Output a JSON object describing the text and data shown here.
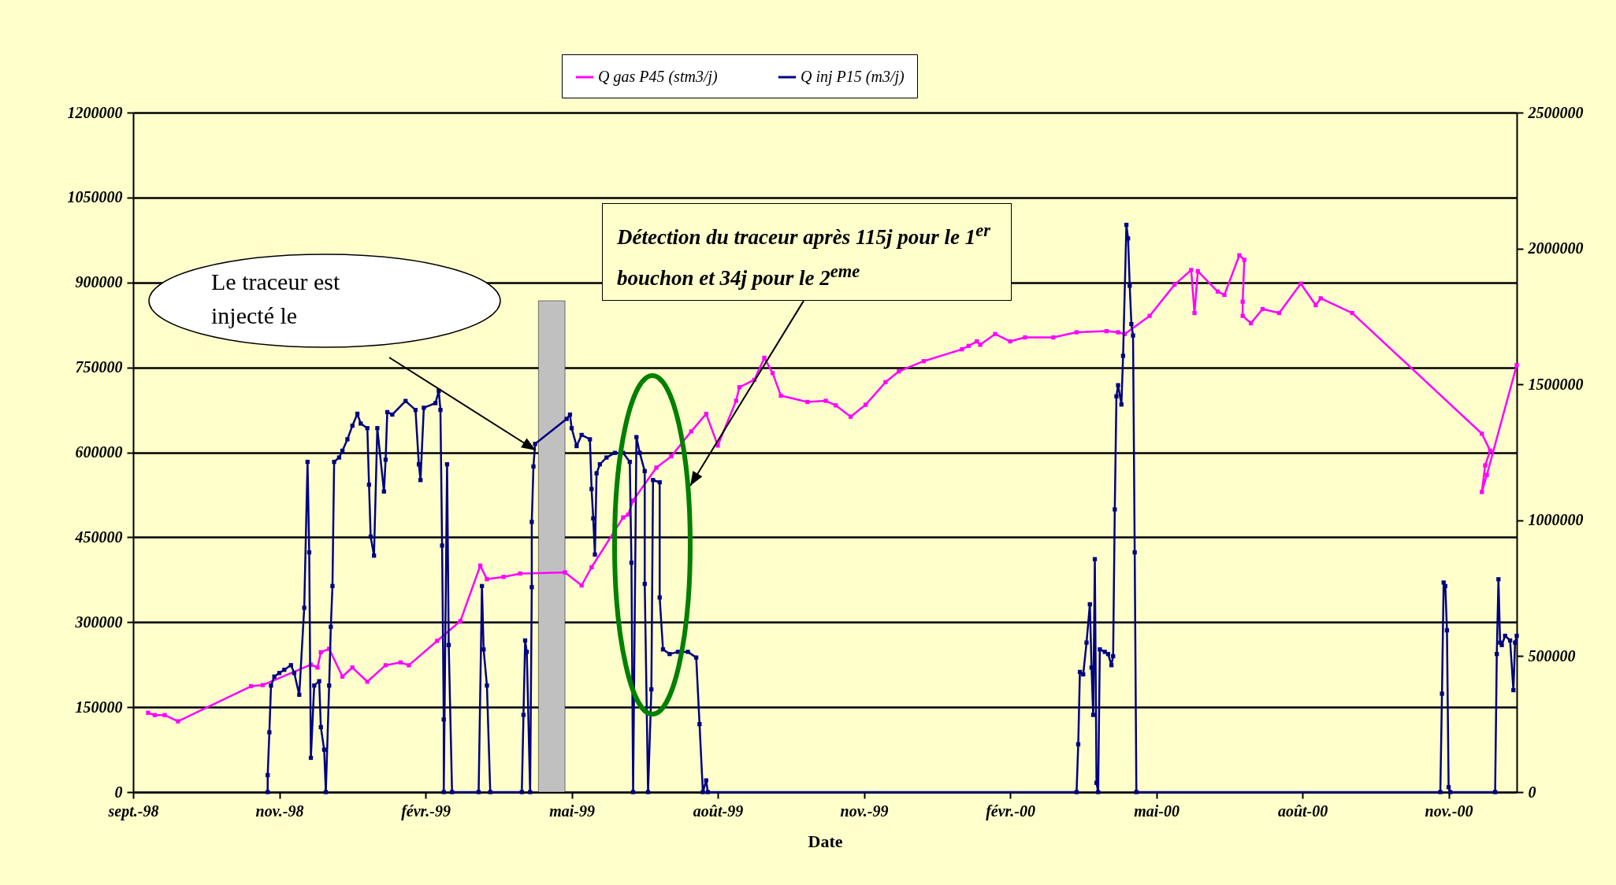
{
  "chart_data": {
    "type": "line",
    "xlabel": "Date",
    "legend": "top",
    "grid": "y",
    "marker": "square",
    "xlim": [
      "1998-09-01",
      "2000-12-12"
    ],
    "xticks": [
      {
        "value": "1998-09-01",
        "label": "sept.-98"
      },
      {
        "value": "1998-11-28",
        "label": "nov.-98"
      },
      {
        "value": "1999-02-24",
        "label": "févr.-99"
      },
      {
        "value": "1999-05-23",
        "label": "mai-99"
      },
      {
        "value": "1999-08-19",
        "label": "août-99"
      },
      {
        "value": "1999-11-15",
        "label": "nov.-99"
      },
      {
        "value": "2000-02-11",
        "label": "févr.-00"
      },
      {
        "value": "2000-05-09",
        "label": "mai-00"
      },
      {
        "value": "2000-08-05",
        "label": "août-00"
      },
      {
        "value": "2000-11-01",
        "label": "nov.-00"
      }
    ],
    "ylim": [
      0,
      1200000
    ],
    "yticks": [
      0,
      150000,
      300000,
      450000,
      600000,
      750000,
      900000,
      1050000,
      1200000
    ],
    "y2lim": [
      0,
      2500000
    ],
    "y2ticks": [
      0,
      500000,
      1000000,
      1500000,
      2000000,
      2500000
    ],
    "bands": [
      {
        "axis": "x",
        "from": "1999-05-03",
        "to": "1999-05-19",
        "color": "#c0c0c0"
      }
    ],
    "annotations": [
      "Le traceur est injecté le",
      "Détection du traceur après 115j pour le 1$^{er}$ bouchon et 34j pour le 2$^{eme}$"
    ],
    "series": [
      {
        "name": "Q gas P45 (stm3/j)",
        "color": "#ff00ff",
        "x": [
          "1998-09-10",
          "1998-09-14",
          "1998-09-20",
          "1998-09-28",
          "1998-11-11",
          "1998-11-18",
          "1998-12-17",
          "1998-12-21",
          "1998-12-23",
          "1998-12-28",
          "1999-01-05",
          "1999-01-11",
          "1999-01-20",
          "1999-01-31",
          "1999-02-09",
          "1999-02-14",
          "1999-03-03",
          "1999-03-17",
          "1999-03-29",
          "1999-04-02",
          "1999-04-12",
          "1999-04-22",
          "1999-05-19",
          "1999-05-29",
          "1999-06-04",
          "1999-06-23",
          "1999-06-26",
          "1999-06-29",
          "1999-07-13",
          "1999-07-22",
          "1999-08-03",
          "1999-08-12",
          "1999-08-19",
          "1999-08-30",
          "1999-09-01",
          "1999-09-10",
          "1999-09-16",
          "1999-09-21",
          "1999-09-26",
          "1999-10-12",
          "1999-10-23",
          "1999-10-29",
          "1999-11-07",
          "1999-11-16",
          "1999-11-28",
          "1999-12-06",
          "1999-12-21",
          "2000-01-13",
          "2000-01-17",
          "2000-01-22",
          "2000-01-24",
          "2000-02-02",
          "2000-02-11",
          "2000-02-20",
          "2000-03-08",
          "2000-03-22",
          "2000-04-09",
          "2000-04-16",
          "2000-04-20",
          "2000-05-05",
          "2000-05-20",
          "2000-05-30",
          "2000-06-01",
          "2000-06-03",
          "2000-06-15",
          "2000-06-19",
          "2000-06-28",
          "2000-07-01",
          "2000-06-30",
          "2000-06-30",
          "2000-07-05",
          "2000-07-12",
          "2000-07-22",
          "2000-08-04",
          "2000-08-13",
          "2000-08-16",
          "2000-09-04",
          "2000-11-21",
          "2000-11-26",
          "2000-11-23",
          "2000-11-21",
          "2000-11-24",
          "2000-12-12"
        ],
        "values": [
          140000,
          136000,
          136000,
          125000,
          187000,
          189000,
          225000,
          220000,
          247000,
          253000,
          204000,
          220000,
          195000,
          224000,
          229000,
          224000,
          267000,
          302000,
          400000,
          376000,
          380000,
          386000,
          388000,
          365000,
          397000,
          485000,
          490000,
          515000,
          573000,
          593000,
          637000,
          668000,
          612000,
          691000,
          715000,
          728000,
          767000,
          740000,
          700000,
          689000,
          691000,
          683000,
          663000,
          684000,
          724000,
          743000,
          761000,
          782000,
          788000,
          796000,
          790000,
          809000,
          796000,
          803000,
          803000,
          812000,
          814000,
          812000,
          809000,
          841000,
          896000,
          922000,
          846000,
          920000,
          884000,
          878000,
          948000,
          940000,
          866000,
          841000,
          828000,
          853000,
          846000,
          898000,
          860000,
          872000,
          846000,
          633000,
          603000,
          577000,
          530000,
          560000,
          754000
        ]
      },
      {
        "name": "Q inj P15 (m3/j)",
        "color": "#000080",
        "axis": "y2",
        "x": [
          "1998-11-21",
          "1998-11-21",
          "1998-11-22",
          "1998-11-23",
          "1998-11-25",
          "1998-11-28",
          "1998-12-01",
          "1998-12-05",
          "1998-12-07",
          "1998-12-10",
          "1998-12-13",
          "1998-12-15",
          "1998-12-16",
          "1998-12-17",
          "1998-12-19",
          "1998-12-22",
          "1998-12-23",
          "1998-12-25",
          "1998-12-26",
          "1998-12-28",
          "1998-12-29",
          "1998-12-30",
          "1998-12-31",
          "1999-01-03",
          "1999-01-05",
          "1999-01-08",
          "1999-01-11",
          "1999-01-14",
          "1999-01-16",
          "1999-01-20",
          "1999-01-21",
          "1999-01-22",
          "1999-01-24",
          "1999-01-26",
          "1999-01-30",
          "1999-01-31",
          "1999-02-01",
          "1999-02-04",
          "1999-02-12",
          "1999-02-18",
          "1999-02-20",
          "1999-02-21",
          "1999-02-23",
          "1999-03-02",
          "1999-03-04",
          "1999-03-05",
          "1999-03-06",
          "1999-03-07",
          "1999-03-07",
          "1999-03-09",
          "1999-03-10",
          "1999-03-12",
          "1999-03-28",
          "1999-03-30",
          "1999-03-31",
          "1999-04-02",
          "1999-04-04",
          "1999-04-23",
          "1999-04-24",
          "1999-04-25",
          "1999-04-26",
          "1999-04-28",
          "1999-04-29",
          "1999-04-29",
          "1999-04-30",
          "1999-05-01",
          "1999-05-20",
          "1999-05-22",
          "1999-05-23",
          "1999-05-26",
          "1999-05-29",
          "1999-06-03",
          "1999-06-04",
          "1999-06-05",
          "1999-06-06",
          "1999-06-07",
          "1999-06-09",
          "1999-06-13",
          "1999-06-18",
          "1999-06-23",
          "1999-06-27",
          "1999-06-28",
          "1999-06-29",
          "1999-07-01",
          "1999-07-03",
          "1999-07-06",
          "1999-07-06",
          "1999-07-08",
          "1999-07-10",
          "1999-07-11",
          "1999-07-15",
          "1999-07-15",
          "1999-07-17",
          "1999-07-21",
          "1999-07-26",
          "1999-08-01",
          "1999-08-06",
          "1999-08-08",
          "1999-08-10",
          "1999-08-12",
          "1999-08-13",
          "2000-03-22",
          "2000-03-23",
          "2000-03-24",
          "2000-03-26",
          "2000-03-28",
          "2000-03-30",
          "2000-03-31",
          "2000-04-01",
          "2000-04-02",
          "2000-04-03",
          "2000-04-04",
          "2000-04-05",
          "2000-04-08",
          "2000-04-10",
          "2000-04-12",
          "2000-04-13",
          "2000-04-14",
          "2000-04-15",
          "2000-04-16",
          "2000-04-18",
          "2000-04-19",
          "2000-04-21",
          "2000-04-22",
          "2000-04-23",
          "2000-04-24",
          "2000-04-25",
          "2000-04-26",
          "2000-04-27",
          "2000-10-27",
          "2000-10-28",
          "2000-10-29",
          "2000-10-30",
          "2000-10-31",
          "2000-11-01",
          "2000-11-02",
          "2000-11-29",
          "2000-11-30",
          "2000-12-01",
          "2000-12-02",
          "2000-12-03",
          "2000-12-05",
          "2000-12-08",
          "2000-12-10",
          "2000-12-11",
          "2000-12-12"
        ],
        "values": [
          0,
          62500,
          220000,
          392000,
          425000,
          438000,
          450000,
          467000,
          438000,
          358000,
          678000,
          1215000,
          882000,
          126000,
          392000,
          408000,
          239000,
          156000,
          0,
          392000,
          608000,
          758000,
          1215000,
          1231000,
          1256000,
          1298000,
          1348000,
          1392000,
          1356000,
          1339000,
          1131000,
          940000,
          870000,
          1339000,
          1106000,
          1223000,
          1398000,
          1389000,
          1439000,
          1406000,
          1206000,
          1148000,
          1414000,
          1431000,
          1476000,
          1406000,
          907000,
          267000,
          0,
          1206000,
          541000,
          0,
          0,
          758000,
          525000,
          392000,
          0,
          0,
          284000,
          558000,
          516000,
          0,
          754000,
          994000,
          1198000,
          1281000,
          1373000,
          1389000,
          1339000,
          1273000,
          1314000,
          1298000,
          1115000,
          1007000,
          874000,
          1173000,
          1206000,
          1231000,
          1248000,
          1248000,
          1215000,
          844000,
          0,
          1306000,
          1248000,
          1181000,
          766000,
          0,
          378000,
          1148000,
          1140000,
          716000,
          525000,
          508000,
          516000,
          516000,
          495000,
          250000,
          0,
          43000,
          0,
          0,
          176000,
          442000,
          433000,
          550000,
          691000,
          458000,
          284000,
          857000,
          34000,
          0,
          525000,
          516000,
          508000,
          467000,
          500000,
          1040000,
          1456000,
          1497000,
          1426000,
          1605000,
          2087000,
          2037000,
          1863000,
          1722000,
          1680000,
          882000,
          0,
          0,
          362000,
          771000,
          758000,
          595000,
          18000,
          0,
          0,
          508000,
          783000,
          550000,
          541000,
          575000,
          558000,
          375000,
          550000,
          575000
        ]
      }
    ]
  }
}
